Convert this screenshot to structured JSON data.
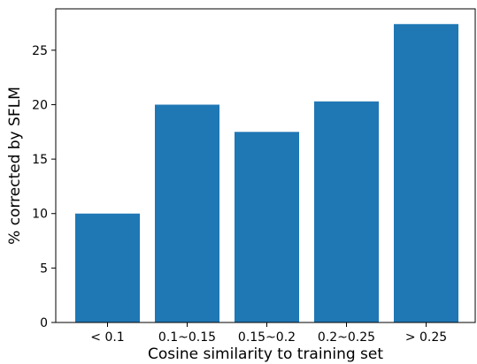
{
  "chart_data": {
    "type": "bar",
    "title": "",
    "xlabel": "Cosine similarity to training set",
    "ylabel": "% corrected by SFLM",
    "categories": [
      "< 0.1",
      "0.1~0.15",
      "0.15~0.2",
      "0.2~0.25",
      "> 0.25"
    ],
    "values": [
      10.0,
      20.0,
      17.5,
      20.3,
      27.4
    ],
    "ylim": [
      0,
      28.8
    ],
    "yticks": [
      0,
      5,
      10,
      15,
      20,
      25
    ],
    "grid": false,
    "legend": "none",
    "bar_color": "#1f77b4"
  }
}
